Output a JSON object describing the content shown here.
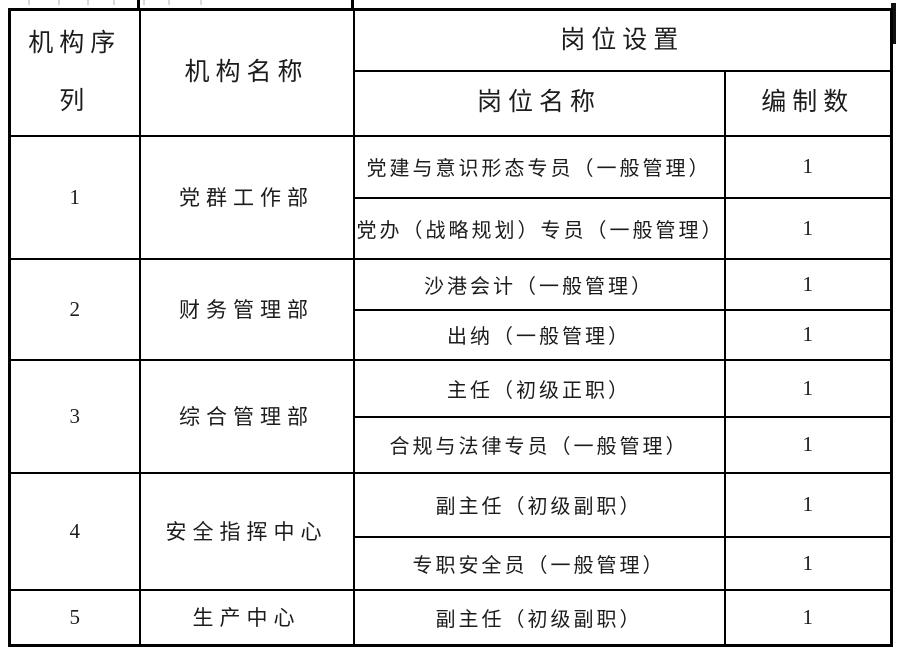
{
  "table": {
    "headers": {
      "org_seq": "机构序列",
      "org_name": "机构名称",
      "position_group": "岗位设置",
      "position_name": "岗位名称",
      "headcount": "编制数"
    },
    "groups": [
      {
        "seq": "1",
        "org": "党群工作部",
        "positions": [
          {
            "name": "党建与意识形态专员（一般管理）",
            "count": "1"
          },
          {
            "name": "党办（战略规划）专员（一般管理）",
            "count": "1"
          }
        ]
      },
      {
        "seq": "2",
        "org": "财务管理部",
        "positions": [
          {
            "name": "沙港会计（一般管理）",
            "count": "1"
          },
          {
            "name": "出纳（一般管理）",
            "count": "1"
          }
        ]
      },
      {
        "seq": "3",
        "org": "综合管理部",
        "positions": [
          {
            "name": "主任（初级正职）",
            "count": "1"
          },
          {
            "name": "合规与法律专员（一般管理）",
            "count": "1"
          }
        ]
      },
      {
        "seq": "4",
        "org": "安全指挥中心",
        "positions": [
          {
            "name": "副主任（初级副职）",
            "count": "1"
          },
          {
            "name": "专职安全员（一般管理）",
            "count": "1"
          }
        ]
      },
      {
        "seq": "5",
        "org": "生产中心",
        "positions": [
          {
            "name": "副主任（初级副职）",
            "count": "1"
          }
        ]
      }
    ]
  },
  "colors": {
    "border": "#000000",
    "text": "#1c1c1c",
    "background": "#ffffff"
  }
}
